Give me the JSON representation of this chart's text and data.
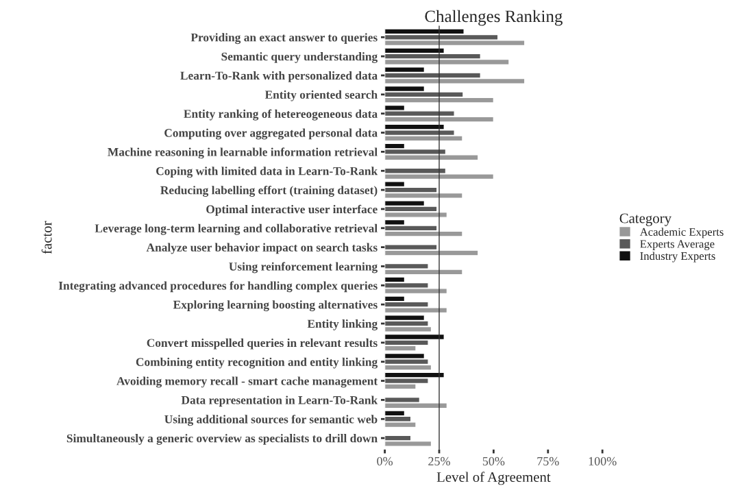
{
  "chart_data": {
    "type": "bar",
    "orientation": "horizontal",
    "title": "Challenges Ranking",
    "xlabel": "Level of Agreement",
    "ylabel": "factor",
    "legend_title": "Category",
    "legend": "right",
    "categories": [
      "Providing an exact answer to queries",
      "Semantic query understanding",
      "Learn-To-Rank with personalized data",
      "Entity oriented search",
      "Entity ranking of hetereogeneous data",
      "Computing over aggregated personal data",
      "Machine reasoning in learnable information retrieval",
      "Coping with limited data in Learn-To-Rank",
      "Reducing labelling effort (training dataset)",
      "Optimal interactive user interface",
      "Leverage long-term learning and collaborative retrieval",
      "Analyze user behavior impact on search tasks",
      "Using reinforcement learning",
      "Integrating advanced procedures for handling complex queries",
      "Exploring learning boosting alternatives",
      "Entity linking",
      "Convert misspelled queries in relevant results",
      "Combining entity recognition and entity linking",
      "Avoiding memory recall - smart cache management",
      "Data representation in Learn-To-Rank",
      "Using additional sources for semantic web",
      "Simultaneously a generic overview as specialists to drill down"
    ],
    "series": [
      {
        "name": "Academic Experts",
        "color": "#999999",
        "values": [
          64.3,
          57.1,
          64.3,
          50,
          50,
          35.7,
          42.9,
          50,
          35.7,
          28.6,
          35.7,
          42.9,
          35.7,
          28.6,
          28.6,
          21.4,
          14.3,
          21.4,
          14.3,
          28.6,
          14.3,
          21.4
        ]
      },
      {
        "name": "Experts Average",
        "color": "#595959",
        "values": [
          52,
          44,
          44,
          36,
          32,
          32,
          28,
          28,
          24,
          24,
          24,
          24,
          20,
          20,
          20,
          20,
          20,
          20,
          20,
          16,
          12,
          12
        ]
      },
      {
        "name": "Industry Experts",
        "color": "#111111",
        "values": [
          36.4,
          27.3,
          18.2,
          18.2,
          9.1,
          27.3,
          9.1,
          null,
          9.1,
          18.2,
          9.1,
          null,
          null,
          9.1,
          9.1,
          18.2,
          27.3,
          18.2,
          27.3,
          null,
          9.1,
          null
        ]
      }
    ],
    "xlim": [
      0,
      100
    ],
    "xticks": [
      {
        "value": 0,
        "label": "0%"
      },
      {
        "value": 25,
        "label": "25%"
      },
      {
        "value": 50,
        "label": "50%"
      },
      {
        "value": 75,
        "label": "75%"
      },
      {
        "value": 100,
        "label": "100%"
      }
    ],
    "ref_lines": [
      {
        "axis": "x",
        "value": 25,
        "color": "#333333"
      }
    ],
    "grid": false
  }
}
